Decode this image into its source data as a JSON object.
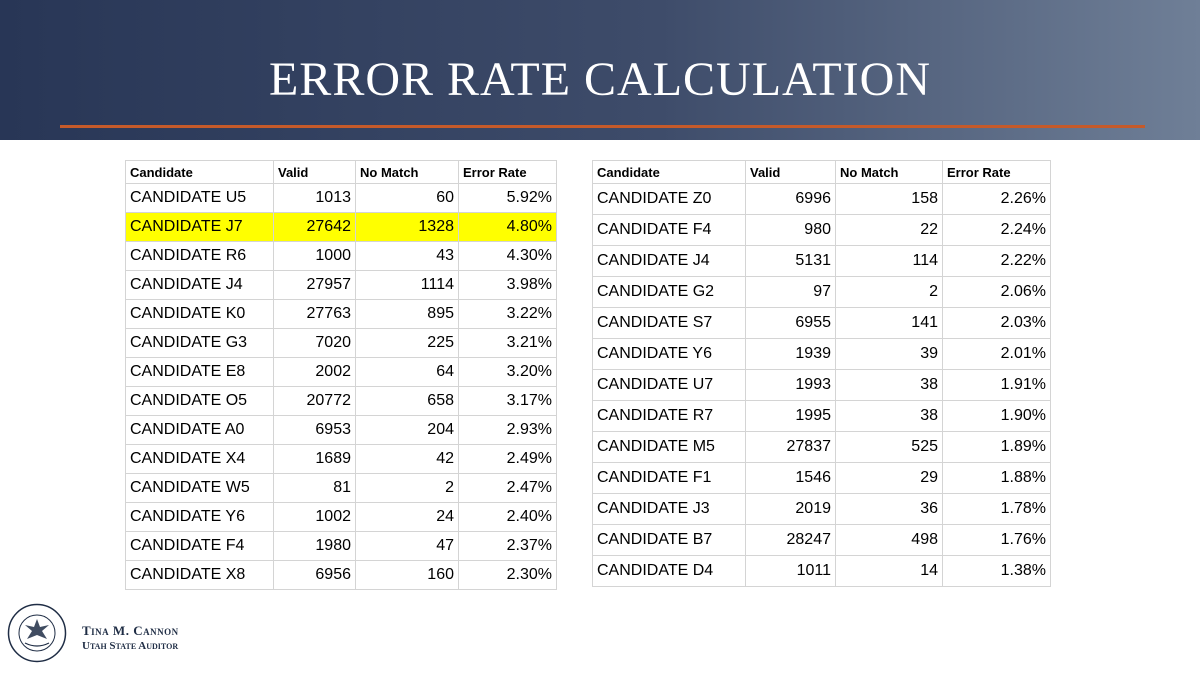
{
  "title": "ERROR RATE CALCULATION",
  "headers": [
    "Candidate",
    "Valid",
    "No Match",
    "Error Rate"
  ],
  "left_table": {
    "rows": [
      [
        "CANDIDATE U5",
        "1013",
        "60",
        "5.92%"
      ],
      [
        "CANDIDATE J7",
        "27642",
        "1328",
        "4.80%"
      ],
      [
        "CANDIDATE R6",
        "1000",
        "43",
        "4.30%"
      ],
      [
        "CANDIDATE J4",
        "27957",
        "1114",
        "3.98%"
      ],
      [
        "CANDIDATE K0",
        "27763",
        "895",
        "3.22%"
      ],
      [
        "CANDIDATE G3",
        "7020",
        "225",
        "3.21%"
      ],
      [
        "CANDIDATE E8",
        "2002",
        "64",
        "3.20%"
      ],
      [
        "CANDIDATE O5",
        "20772",
        "658",
        "3.17%"
      ],
      [
        "CANDIDATE A0",
        "6953",
        "204",
        "2.93%"
      ],
      [
        "CANDIDATE X4",
        "1689",
        "42",
        "2.49%"
      ],
      [
        "CANDIDATE W5",
        "81",
        "2",
        "2.47%"
      ],
      [
        "CANDIDATE Y6",
        "1002",
        "24",
        "2.40%"
      ],
      [
        "CANDIDATE F4",
        "1980",
        "47",
        "2.37%"
      ],
      [
        "CANDIDATE X8",
        "6956",
        "160",
        "2.30%"
      ]
    ],
    "highlight_row": 1,
    "highlight_color": "#ffff00"
  },
  "right_table": {
    "rows": [
      [
        "CANDIDATE Z0",
        "6996",
        "158",
        "2.26%"
      ],
      [
        "CANDIDATE F4",
        "980",
        "22",
        "2.24%"
      ],
      [
        "CANDIDATE J4",
        "5131",
        "114",
        "2.22%"
      ],
      [
        "CANDIDATE G2",
        "97",
        "2",
        "2.06%"
      ],
      [
        "CANDIDATE S7",
        "6955",
        "141",
        "2.03%"
      ],
      [
        "CANDIDATE Y6",
        "1939",
        "39",
        "2.01%"
      ],
      [
        "CANDIDATE U7",
        "1993",
        "38",
        "1.91%"
      ],
      [
        "CANDIDATE R7",
        "1995",
        "38",
        "1.90%"
      ],
      [
        "CANDIDATE M5",
        "27837",
        "525",
        "1.89%"
      ],
      [
        "CANDIDATE F1",
        "1546",
        "29",
        "1.88%"
      ],
      [
        "CANDIDATE J3",
        "2019",
        "36",
        "1.78%"
      ],
      [
        "CANDIDATE B7",
        "28247",
        "498",
        "1.76%"
      ],
      [
        "CANDIDATE D4",
        "1011",
        "14",
        "1.38%"
      ]
    ]
  },
  "footer": {
    "name": "Tina M. Cannon",
    "role": "Utah State Auditor",
    "seal_text": "STATE OF UTAH · STATE AUDITOR · JAN. 4, 1896",
    "seal_icon": "utah-state-seal-icon"
  },
  "colors": {
    "banner_dark": "#283656",
    "banner_light": "#6f7f97",
    "accent_rule": "#c55a2a",
    "highlight": "#ffff00"
  }
}
